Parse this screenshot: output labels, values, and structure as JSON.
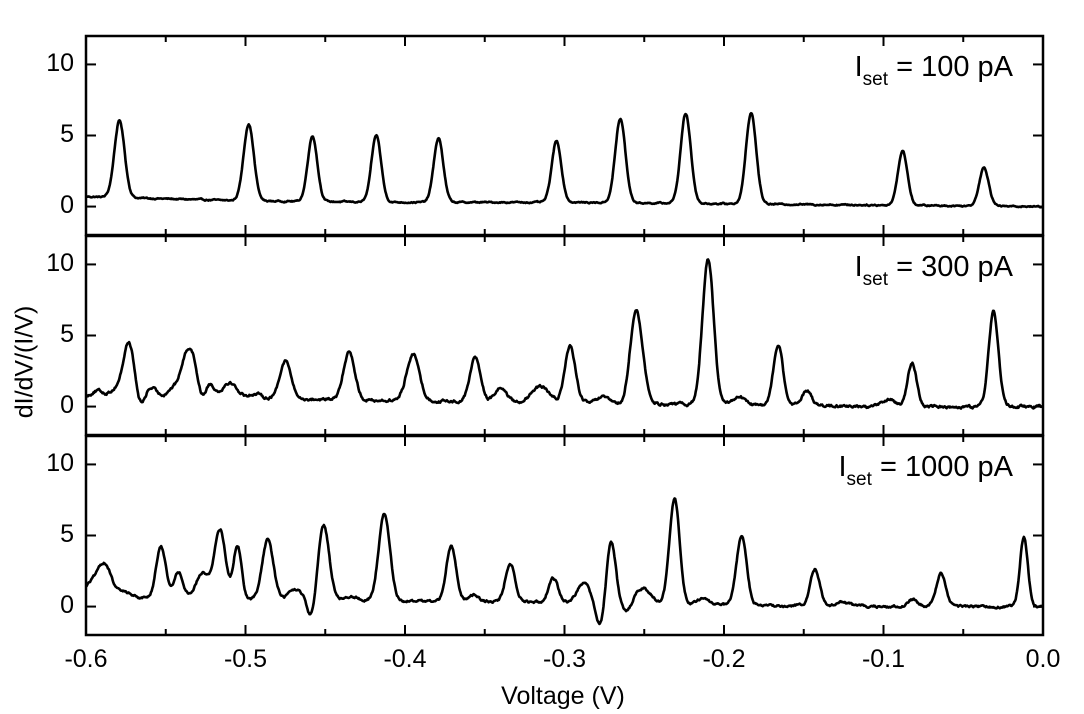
{
  "chart_data": {
    "type": "line",
    "xlabel": "Voltage (V)",
    "ylabel": "dI/dV/(I/V)",
    "xlim": [
      -0.6,
      0.0
    ],
    "ylim": [
      -2,
      12
    ],
    "x_ticks": [
      "-0.6",
      "-0.5",
      "-0.4",
      "-0.3",
      "-0.2",
      "-0.1",
      "0.0"
    ],
    "y_ticks": [
      "0",
      "5",
      "10"
    ],
    "panels": [
      {
        "annotation": {
          "main": "I",
          "sub": "set",
          "rest": " = 100 pA"
        },
        "baseline": [
          [
            -0.6,
            0.7
          ],
          [
            -0.5,
            0.4
          ],
          [
            -0.4,
            0.3
          ],
          [
            -0.3,
            0.3
          ],
          [
            -0.2,
            0.2
          ],
          [
            -0.1,
            0.1
          ],
          [
            0.0,
            0.0
          ]
        ],
        "peaks": [
          [
            -0.579,
            5.4,
            0.0032
          ],
          [
            -0.498,
            5.4,
            0.0032
          ],
          [
            -0.458,
            4.6,
            0.003
          ],
          [
            -0.418,
            4.7,
            0.003
          ],
          [
            -0.379,
            4.5,
            0.003
          ],
          [
            -0.305,
            4.3,
            0.003
          ],
          [
            -0.265,
            5.9,
            0.0032
          ],
          [
            -0.224,
            6.3,
            0.0032
          ],
          [
            -0.183,
            6.4,
            0.0032
          ],
          [
            -0.088,
            3.8,
            0.003
          ],
          [
            -0.037,
            2.7,
            0.003
          ]
        ],
        "noise": 0.06
      },
      {
        "annotation": {
          "main": "I",
          "sub": "set",
          "rest": " = 300 pA"
        },
        "baseline": [
          [
            -0.6,
            0.6
          ],
          [
            -0.5,
            0.6
          ],
          [
            -0.4,
            0.4
          ],
          [
            -0.3,
            0.3
          ],
          [
            -0.2,
            0.1
          ],
          [
            -0.1,
            0.0
          ],
          [
            0.0,
            0.0
          ]
        ],
        "peaks": [
          [
            -0.593,
            0.5,
            0.004
          ],
          [
            -0.581,
            0.6,
            0.004
          ],
          [
            -0.573,
            3.9,
            0.0035
          ],
          [
            -0.56,
            0.8,
            0.004
          ],
          [
            -0.546,
            0.6,
            0.0035
          ],
          [
            -0.538,
            2.1,
            0.0035
          ],
          [
            -0.533,
            2.5,
            0.0035
          ],
          [
            -0.523,
            1.2,
            0.003
          ],
          [
            -0.51,
            1.1,
            0.0045
          ],
          [
            -0.494,
            0.3,
            0.004
          ],
          [
            -0.475,
            2.7,
            0.0035
          ],
          [
            -0.435,
            3.4,
            0.0035
          ],
          [
            -0.395,
            3.3,
            0.004
          ],
          [
            -0.356,
            3.1,
            0.0033
          ],
          [
            -0.34,
            1.0,
            0.0035
          ],
          [
            -0.315,
            1.1,
            0.005
          ],
          [
            -0.297,
            4.4,
            0.0035
          ],
          [
            -0.276,
            0.4,
            0.0035
          ],
          [
            -0.255,
            6.5,
            0.004
          ],
          [
            -0.21,
            10.3,
            0.0035
          ],
          [
            -0.191,
            0.6,
            0.004
          ],
          [
            -0.166,
            4.3,
            0.003
          ],
          [
            -0.148,
            1.1,
            0.003
          ],
          [
            -0.097,
            0.5,
            0.004
          ],
          [
            -0.082,
            3.1,
            0.0028
          ],
          [
            -0.031,
            6.8,
            0.003
          ]
        ],
        "dips": [
          [
            -0.566,
            1.0,
            0.003
          ],
          [
            -0.527,
            0.8,
            0.003
          ],
          [
            -0.3,
            0.8,
            0.003
          ],
          [
            -0.262,
            0.4,
            0.003
          ]
        ],
        "noise": 0.12
      },
      {
        "annotation": {
          "main": "I",
          "sub": "set",
          "rest": " = 1000 pA"
        },
        "baseline": [
          [
            -0.6,
            0.7
          ],
          [
            -0.5,
            0.5
          ],
          [
            -0.4,
            0.4
          ],
          [
            -0.3,
            0.3
          ],
          [
            -0.2,
            0.1
          ],
          [
            -0.1,
            0.0
          ],
          [
            0.0,
            0.0
          ]
        ],
        "peaks": [
          [
            -0.596,
            1.0,
            0.005
          ],
          [
            -0.588,
            2.1,
            0.004
          ],
          [
            -0.576,
            0.4,
            0.004
          ],
          [
            -0.553,
            3.6,
            0.003
          ],
          [
            -0.542,
            1.8,
            0.003
          ],
          [
            -0.527,
            1.8,
            0.004
          ],
          [
            -0.516,
            4.9,
            0.0035
          ],
          [
            -0.505,
            3.8,
            0.0025
          ],
          [
            -0.486,
            4.2,
            0.0035
          ],
          [
            -0.467,
            1.9,
            0.004
          ],
          [
            -0.451,
            5.3,
            0.0035
          ],
          [
            -0.434,
            0.3,
            0.004
          ],
          [
            -0.413,
            6.1,
            0.0035
          ],
          [
            -0.371,
            3.9,
            0.003
          ],
          [
            -0.357,
            0.5,
            0.003
          ],
          [
            -0.334,
            2.7,
            0.003
          ],
          [
            -0.307,
            1.7,
            0.003
          ],
          [
            -0.288,
            1.4,
            0.004
          ],
          [
            -0.271,
            4.5,
            0.003
          ],
          [
            -0.251,
            1.1,
            0.005
          ],
          [
            -0.231,
            7.4,
            0.0032
          ],
          [
            -0.213,
            0.4,
            0.004
          ],
          [
            -0.189,
            4.8,
            0.0032
          ],
          [
            -0.143,
            2.6,
            0.003
          ],
          [
            -0.125,
            0.3,
            0.004
          ],
          [
            -0.082,
            0.5,
            0.003
          ],
          [
            -0.064,
            2.3,
            0.003
          ],
          [
            -0.012,
            4.9,
            0.0025
          ]
        ],
        "dips": [
          [
            -0.467,
            1.2,
            0.003
          ],
          [
            -0.459,
            1.6,
            0.003
          ],
          [
            -0.277,
            1.9,
            0.003
          ],
          [
            -0.261,
            0.7,
            0.003
          ]
        ],
        "noise": 0.1
      }
    ]
  }
}
